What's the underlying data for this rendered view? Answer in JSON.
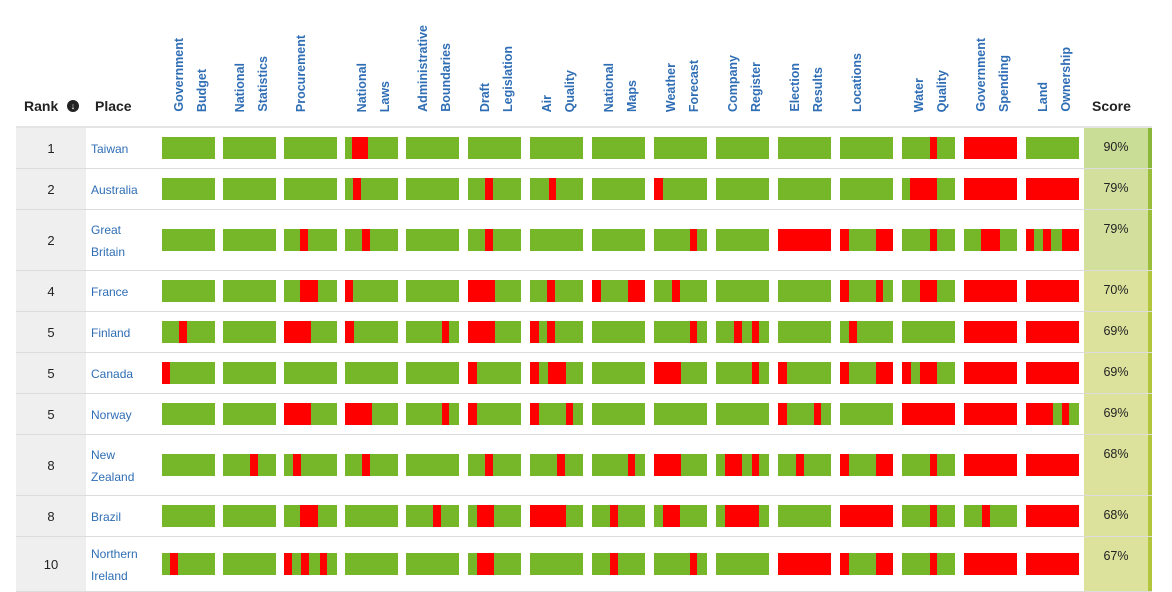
{
  "header": {
    "rank_label": "Rank",
    "sort_icon": "sort-down-icon",
    "place_label": "Place",
    "score_label": "Score",
    "columns": [
      {
        "line1": "Government",
        "line2": "Budget"
      },
      {
        "line1": "National",
        "line2": "Statistics"
      },
      {
        "line1": "Procurement",
        "line2": ""
      },
      {
        "line1": "National",
        "line2": "Laws"
      },
      {
        "line1": "Administrative",
        "line2": "Boundaries"
      },
      {
        "line1": "Draft",
        "line2": "Legislation"
      },
      {
        "line1": "Air",
        "line2": "Quality"
      },
      {
        "line1": "National",
        "line2": "Maps"
      },
      {
        "line1": "Weather",
        "line2": "Forecast"
      },
      {
        "line1": "Company",
        "line2": "Register"
      },
      {
        "line1": "Election",
        "line2": "Results"
      },
      {
        "line1": "Locations",
        "line2": ""
      },
      {
        "line1": "Water",
        "line2": "Quality"
      },
      {
        "line1": "Government",
        "line2": "Spending"
      },
      {
        "line1": "Land",
        "line2": "Ownership"
      }
    ]
  },
  "colors": {
    "green": "#76b72a",
    "red": "#ff0000"
  },
  "rows": [
    {
      "rank": "1",
      "place_lines": [
        "Taiwan"
      ],
      "score": "90%",
      "score_color": "#c9dd96",
      "edge_color": "#8ab73a",
      "datasets": [
        [],
        [],
        [],
        [
          [
            0.13,
            0.43
          ]
        ],
        [],
        [],
        [],
        [],
        [],
        [],
        [],
        [],
        [
          [
            0.52,
            0.66
          ]
        ],
        [
          [
            0,
            1
          ]
        ],
        []
      ]
    },
    {
      "rank": "2",
      "place_lines": [
        "Australia"
      ],
      "score": "79%",
      "score_color": "#d3e09d",
      "edge_color": "#9bbd3c",
      "datasets": [
        [],
        [],
        [],
        [
          [
            0.15,
            0.31
          ]
        ],
        [],
        [
          [
            0.32,
            0.47
          ]
        ],
        [
          [
            0.35,
            0.5
          ]
        ],
        [],
        [
          [
            0,
            0.17
          ]
        ],
        [],
        [],
        [],
        [
          [
            0.16,
            0.66
          ]
        ],
        [
          [
            0,
            1
          ]
        ],
        [
          [
            0,
            1
          ]
        ]
      ]
    },
    {
      "rank": "2",
      "place_lines": [
        "Great",
        "Britain"
      ],
      "score": "79%",
      "score_color": "#d3e09d",
      "edge_color": "#9bbd3c",
      "datasets": [
        [],
        [],
        [
          [
            0.3,
            0.46
          ]
        ],
        [
          [
            0.32,
            0.47
          ]
        ],
        [],
        [
          [
            0.32,
            0.47
          ]
        ],
        [],
        [],
        [
          [
            0.67,
            0.82
          ]
        ],
        [],
        [
          [
            0,
            1
          ]
        ],
        [
          [
            0,
            0.17
          ],
          [
            0.67,
            1
          ]
        ],
        [
          [
            0.52,
            0.66
          ]
        ],
        [
          [
            0.33,
            0.68
          ]
        ],
        [
          [
            0,
            0.16
          ],
          [
            0.33,
            0.47
          ],
          [
            0.67,
            1
          ]
        ]
      ]
    },
    {
      "rank": "4",
      "place_lines": [
        "France"
      ],
      "score": "70%",
      "score_color": "#dce29c",
      "edge_color": "#b3c43d",
      "datasets": [
        [],
        [],
        [
          [
            0.3,
            0.65
          ]
        ],
        [
          [
            0,
            0.16
          ]
        ],
        [],
        [
          [
            0,
            0.5
          ]
        ],
        [
          [
            0.32,
            0.47
          ]
        ],
        [
          [
            0,
            0.17
          ],
          [
            0.67,
            1
          ]
        ],
        [
          [
            0.34,
            0.5
          ]
        ],
        [],
        [],
        [
          [
            0,
            0.17
          ],
          [
            0.67,
            0.82
          ]
        ],
        [
          [
            0.34,
            0.66
          ]
        ],
        [
          [
            0,
            1
          ]
        ],
        [
          [
            0,
            1
          ]
        ]
      ]
    },
    {
      "rank": "5",
      "place_lines": [
        "Finland"
      ],
      "score": "69%",
      "score_color": "#dce29c",
      "edge_color": "#b3c43d",
      "datasets": [
        [
          [
            0.32,
            0.47
          ]
        ],
        [],
        [
          [
            0,
            0.5
          ]
        ],
        [
          [
            0,
            0.17
          ]
        ],
        [
          [
            0.67,
            0.82
          ]
        ],
        [
          [
            0,
            0.5
          ]
        ],
        [
          [
            0,
            0.17
          ],
          [
            0.32,
            0.47
          ]
        ],
        [],
        [
          [
            0.67,
            0.82
          ]
        ],
        [
          [
            0.34,
            0.5
          ],
          [
            0.67,
            0.82
          ]
        ],
        [],
        [
          [
            0.17,
            0.32
          ]
        ],
        [],
        [
          [
            0,
            1
          ]
        ],
        [
          [
            0,
            1
          ]
        ]
      ]
    },
    {
      "rank": "5",
      "place_lines": [
        "Canada"
      ],
      "score": "69%",
      "score_color": "#dce29c",
      "edge_color": "#b3c43d",
      "datasets": [
        [
          [
            0,
            0.16
          ]
        ],
        [],
        [],
        [],
        [],
        [
          [
            0,
            0.17
          ]
        ],
        [
          [
            0,
            0.17
          ],
          [
            0.34,
            0.67
          ]
        ],
        [],
        [
          [
            0,
            0.5
          ]
        ],
        [
          [
            0.67,
            0.82
          ]
        ],
        [
          [
            0,
            0.17
          ]
        ],
        [
          [
            0,
            0.17
          ],
          [
            0.67,
            1
          ]
        ],
        [
          [
            0,
            0.17
          ],
          [
            0.34,
            0.66
          ]
        ],
        [
          [
            0,
            1
          ]
        ],
        [
          [
            0,
            1
          ]
        ]
      ]
    },
    {
      "rank": "5",
      "place_lines": [
        "Norway"
      ],
      "score": "69%",
      "score_color": "#dce29c",
      "edge_color": "#b3c43d",
      "datasets": [
        [],
        [],
        [
          [
            0,
            0.5
          ]
        ],
        [
          [
            0,
            0.5
          ]
        ],
        [
          [
            0.67,
            0.82
          ]
        ],
        [
          [
            0,
            0.17
          ]
        ],
        [
          [
            0,
            0.17
          ],
          [
            0.67,
            0.82
          ]
        ],
        [],
        [],
        [],
        [
          [
            0,
            0.17
          ],
          [
            0.67,
            0.82
          ]
        ],
        [],
        [
          [
            0,
            1
          ]
        ],
        [
          [
            0,
            1
          ]
        ],
        [
          [
            0,
            0.5
          ],
          [
            0.67,
            0.82
          ]
        ]
      ]
    },
    {
      "rank": "8",
      "place_lines": [
        "New",
        "Zealand"
      ],
      "score": "68%",
      "score_color": "#dce29c",
      "edge_color": "#b3c43d",
      "datasets": [
        [],
        [
          [
            0.5,
            0.66
          ]
        ],
        [
          [
            0.17,
            0.32
          ]
        ],
        [
          [
            0.32,
            0.47
          ]
        ],
        [],
        [
          [
            0.32,
            0.47
          ]
        ],
        [
          [
            0.5,
            0.66
          ]
        ],
        [
          [
            0.67,
            0.82
          ]
        ],
        [
          [
            0,
            0.5
          ]
        ],
        [
          [
            0.17,
            0.5
          ],
          [
            0.67,
            0.82
          ]
        ],
        [
          [
            0.34,
            0.5
          ]
        ],
        [
          [
            0,
            0.17
          ],
          [
            0.67,
            1
          ]
        ],
        [
          [
            0.52,
            0.66
          ]
        ],
        [
          [
            0,
            1
          ]
        ],
        [
          [
            0,
            1
          ]
        ]
      ]
    },
    {
      "rank": "8",
      "place_lines": [
        "Brazil"
      ],
      "score": "68%",
      "score_color": "#dce29c",
      "edge_color": "#b3c43d",
      "datasets": [
        [],
        [],
        [
          [
            0.3,
            0.65
          ]
        ],
        [],
        [
          [
            0.5,
            0.66
          ]
        ],
        [
          [
            0.17,
            0.5
          ]
        ],
        [
          [
            0,
            0.67
          ]
        ],
        [
          [
            0.34,
            0.5
          ]
        ],
        [
          [
            0.17,
            0.5
          ]
        ],
        [
          [
            0.17,
            0.82
          ]
        ],
        [],
        [
          [
            0,
            1
          ]
        ],
        [
          [
            0.52,
            0.66
          ]
        ],
        [
          [
            0.34,
            0.5
          ]
        ],
        [
          [
            0,
            1
          ]
        ]
      ]
    },
    {
      "rank": "10",
      "place_lines": [
        "Northern",
        "Ireland"
      ],
      "score": "67%",
      "score_color": "#dce29c",
      "edge_color": "#b3c43d",
      "datasets": [
        [
          [
            0.16,
            0.31
          ]
        ],
        [],
        [
          [
            0,
            0.16
          ],
          [
            0.33,
            0.48
          ],
          [
            0.67,
            0.82
          ]
        ],
        [],
        [],
        [
          [
            0.17,
            0.5
          ]
        ],
        [],
        [
          [
            0.34,
            0.5
          ]
        ],
        [
          [
            0.67,
            0.82
          ]
        ],
        [],
        [
          [
            0,
            1
          ]
        ],
        [
          [
            0,
            0.17
          ],
          [
            0.67,
            1
          ]
        ],
        [
          [
            0.52,
            0.66
          ]
        ],
        [
          [
            0,
            1
          ]
        ],
        [
          [
            0,
            1
          ]
        ]
      ]
    }
  ]
}
